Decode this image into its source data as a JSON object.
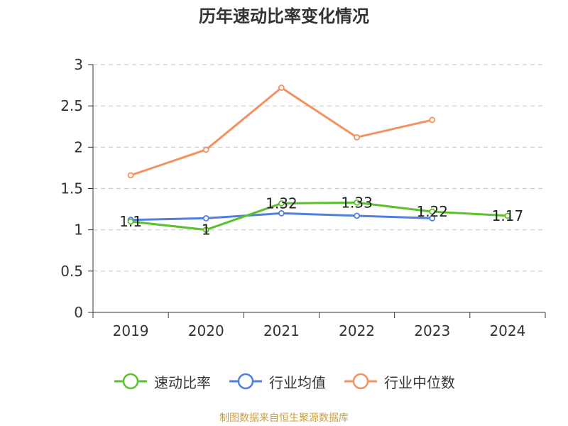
{
  "chart_data": {
    "type": "line",
    "title": "历年速动比率变化情况",
    "categories": [
      "2019",
      "2020",
      "2021",
      "2022",
      "2023",
      "2024"
    ],
    "ylim": [
      0,
      3
    ],
    "yticks": [
      "0",
      "0.5",
      "1",
      "1.5",
      "2",
      "2.5",
      "3"
    ],
    "grid": true,
    "legend_position": "bottom",
    "series": [
      {
        "name": "速动比率",
        "color": "#5bc22e",
        "values": [
          1.1,
          1,
          1.32,
          1.33,
          1.22,
          1.17
        ],
        "data_labels": [
          "1.1",
          "1",
          "1.32",
          "1.33",
          "1.22",
          "1.17"
        ]
      },
      {
        "name": "行业均值",
        "color": "#4f7fdf",
        "values": [
          1.12,
          1.14,
          1.2,
          1.17,
          1.14,
          null
        ]
      },
      {
        "name": "行业中位数",
        "color": "#f39160",
        "values": [
          1.66,
          1.97,
          2.72,
          2.12,
          2.33,
          null
        ]
      }
    ]
  },
  "footer": {
    "source": "制图数据来自恒生聚源数据库"
  }
}
